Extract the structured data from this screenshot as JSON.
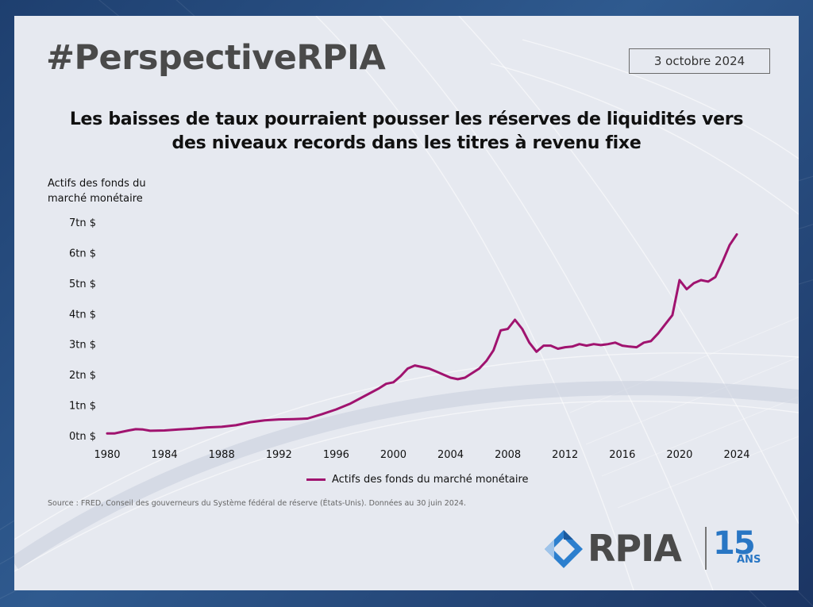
{
  "header": {
    "hashtag": "#PerspectiveRPIA",
    "date": "3 octobre 2024"
  },
  "chart_data": {
    "type": "line",
    "title": "Les baisses de taux pourraient pousser les réserves de liquidités vers des niveaux records dans les titres à revenu fixe",
    "title_lines": [
      "Les baisses de taux pourraient pousser les réserves de liquidités vers",
      "des niveaux records dans les titres à revenu fixe"
    ],
    "ylabel": "Actifs des fonds du marché monétaire",
    "ylabel_lines": [
      "Actifs des fonds du",
      "marché monétaire"
    ],
    "xlabel": "",
    "xlim": [
      1980,
      2024
    ],
    "ylim": [
      0,
      7
    ],
    "x_ticks": [
      "1980",
      "1984",
      "1988",
      "1992",
      "1996",
      "2000",
      "2004",
      "2008",
      "2012",
      "2016",
      "2020",
      "2024"
    ],
    "y_ticks": [
      "0tn $",
      "1tn $",
      "2tn $",
      "3tn $",
      "4tn $",
      "5tn $",
      "6tn $",
      "7tn $"
    ],
    "grid": false,
    "legend_position": "bottom",
    "series": [
      {
        "name": "Actifs des fonds du marché monétaire",
        "color": "#a0136f",
        "x": [
          1980,
          1980.5,
          1981,
          1981.5,
          1982,
          1982.5,
          1983,
          1984,
          1985,
          1986,
          1987,
          1988,
          1989,
          1990,
          1991,
          1992,
          1993,
          1994,
          1995,
          1996,
          1997,
          1998,
          1999,
          1999.5,
          2000,
          2000.5,
          2001,
          2001.5,
          2002,
          2002.5,
          2003,
          2004,
          2004.5,
          2005,
          2005.5,
          2006,
          2006.5,
          2007,
          2007.5,
          2008,
          2008.5,
          2009,
          2009.5,
          2010,
          2010.5,
          2011,
          2011.5,
          2012,
          2012.5,
          2013,
          2013.5,
          2014,
          2014.5,
          2015,
          2015.5,
          2016,
          2016.5,
          2017,
          2017.5,
          2018,
          2018.5,
          2019,
          2019.5,
          2020,
          2020.5,
          2021,
          2021.5,
          2022,
          2022.5,
          2023,
          2023.5,
          2024
        ],
        "y": [
          0.07,
          0.07,
          0.12,
          0.17,
          0.21,
          0.2,
          0.16,
          0.17,
          0.2,
          0.23,
          0.27,
          0.29,
          0.34,
          0.44,
          0.5,
          0.53,
          0.54,
          0.56,
          0.7,
          0.86,
          1.05,
          1.3,
          1.55,
          1.7,
          1.75,
          1.95,
          2.2,
          2.3,
          2.25,
          2.2,
          2.1,
          1.9,
          1.85,
          1.9,
          2.05,
          2.2,
          2.45,
          2.8,
          3.45,
          3.5,
          3.8,
          3.5,
          3.05,
          2.75,
          2.95,
          2.95,
          2.85,
          2.9,
          2.92,
          3.0,
          2.95,
          3.0,
          2.97,
          3.0,
          3.05,
          2.95,
          2.92,
          2.9,
          3.05,
          3.1,
          3.35,
          3.65,
          3.95,
          5.1,
          4.8,
          5.0,
          5.1,
          5.05,
          5.2,
          5.7,
          6.25,
          6.6
        ]
      }
    ]
  },
  "footer": {
    "source": "Source : FRED, Conseil des gouverneurs du Système fédéral de réserve (États-Unis). Données au 30 juin 2024.",
    "logo_text": "RPIA",
    "logo_anniversary_number": "15",
    "logo_anniversary_label": "ANS"
  }
}
